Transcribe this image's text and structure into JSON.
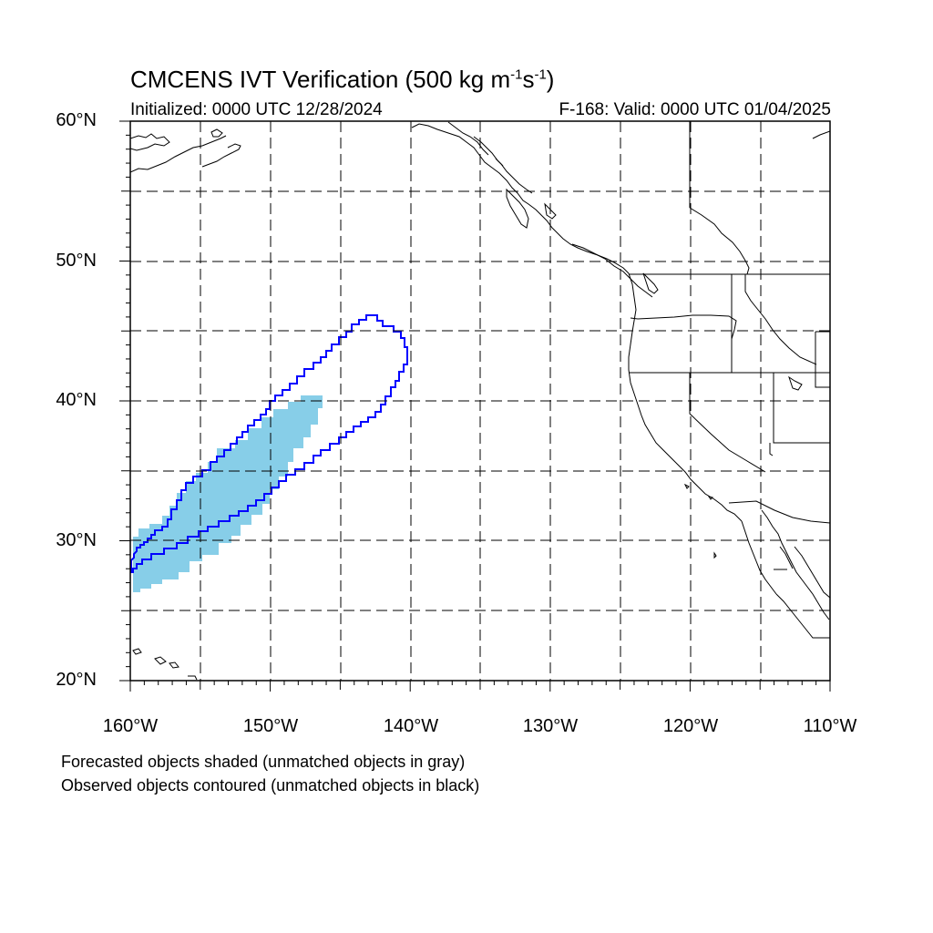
{
  "title": {
    "prefix": "CMCENS IVT Verification (500 kg m",
    "exp1": "-1",
    "mid": "s",
    "exp2": "-1",
    "suffix": ")"
  },
  "initialized": "Initialized: 0000 UTC 12/28/2024",
  "valid": "F-168: Valid: 0000 UTC 01/04/2025",
  "axes": {
    "lat_labels": [
      "60°N",
      "50°N",
      "40°N",
      "30°N",
      "20°N"
    ],
    "lon_labels": [
      "160°W",
      "150°W",
      "140°W",
      "130°W",
      "120°W",
      "110°W"
    ],
    "lat_range": [
      20,
      60
    ],
    "lon_range": [
      -160,
      -110
    ],
    "grid": "dashed, every 5 degrees"
  },
  "legend": {
    "line1": "Forecasted objects shaded (unmatched objects in gray)",
    "line2": "Observed objects contoured (unmatched objects in black)"
  },
  "colors": {
    "forecast_fill": "#87CEE8",
    "observed_contour": "#0000FF",
    "coastline": "#000000",
    "grid": "#000000"
  },
  "objects": {
    "forecast_object": "light-blue shaded region, approx. 26.5°N–40.5°N, 160°W–146.5°W",
    "observed_object": "blue contour, approx. 27.5°N–46°N, 160°W–140°W"
  }
}
